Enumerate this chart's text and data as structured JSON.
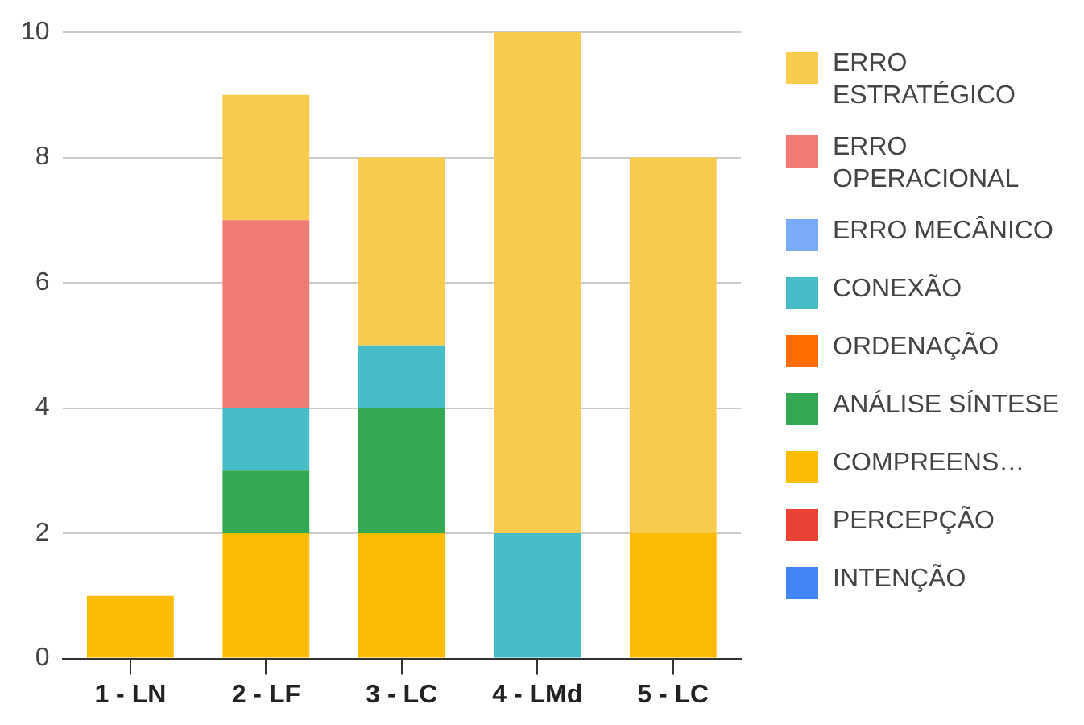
{
  "chart_data": {
    "type": "bar",
    "stacked": true,
    "categories": [
      "1 - LN",
      "2 - LF",
      "3 - LC",
      "4 - LMd",
      "5 - LC"
    ],
    "series": [
      {
        "name": "INTENÇÃO",
        "color": "#4285f4",
        "values": [
          null,
          null,
          null,
          null,
          null
        ]
      },
      {
        "name": "PERCEPÇÃO",
        "color": "#ea4335",
        "values": [
          null,
          null,
          null,
          null,
          null
        ]
      },
      {
        "name": "COMPREENS…",
        "color": "#fbbc04",
        "values": [
          1,
          2,
          2,
          null,
          2
        ]
      },
      {
        "name": "ANÁLISE SÍNTESE",
        "color": "#34a853",
        "values": [
          null,
          1,
          2,
          null,
          null
        ]
      },
      {
        "name": "ORDENAÇÃO",
        "color": "#ff6d01",
        "values": [
          null,
          null,
          null,
          null,
          null
        ]
      },
      {
        "name": "CONEXÃO",
        "color": "#46bdc6",
        "values": [
          null,
          1,
          1,
          2,
          null
        ]
      },
      {
        "name": "ERRO MECÂNICO",
        "color": "#7baaf7",
        "values": [
          null,
          null,
          null,
          null,
          null
        ]
      },
      {
        "name": "ERRO OPERACIONAL",
        "color": "#f07b72",
        "values": [
          null,
          3,
          null,
          null,
          null
        ]
      },
      {
        "name": "ERRO ESTRATÉGICO",
        "color": "#f7cb4d",
        "values": [
          null,
          2,
          3,
          8,
          6
        ]
      }
    ],
    "ylim": [
      0,
      10
    ],
    "yticks": [
      0,
      2,
      4,
      6,
      8,
      10
    ],
    "grid": "y",
    "legend": "right"
  }
}
